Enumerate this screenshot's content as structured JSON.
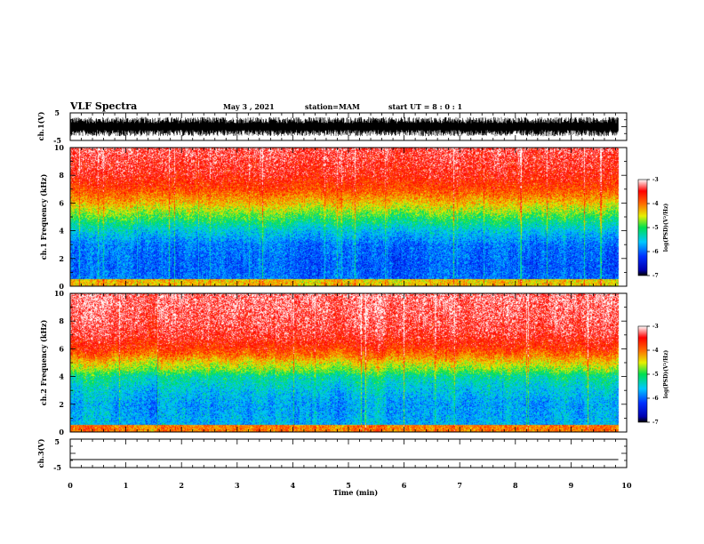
{
  "header": {
    "title": "VLF Spectra",
    "date": "May 3 , 2021",
    "station": "station=MAM",
    "start": "start UT = 8 : 0 : 1"
  },
  "chart_data": [
    {
      "type": "line",
      "name": "ch1-waveform",
      "ylabel": "ch.1(V)",
      "ylim": [
        -5,
        5
      ],
      "yticks": [
        "5",
        "-5"
      ],
      "xlim": [
        0,
        10
      ],
      "trace": "dense noise filling roughly -3.5 to +3.5 V over 0 to 9.85 min"
    },
    {
      "type": "heatmap",
      "name": "ch1-spectrogram",
      "ylabel": "ch.1 Frequency (kHz)",
      "xlim": [
        0,
        10
      ],
      "ylim": [
        0,
        10
      ],
      "xticks": [
        "0",
        "1",
        "2",
        "3",
        "4",
        "5",
        "6",
        "7",
        "8",
        "9",
        "10"
      ],
      "yticks": [
        "0",
        "2",
        "4",
        "6",
        "8",
        "10"
      ],
      "data_end_x": 9.85,
      "colorbar": {
        "label": "log(PSD)(V²/Hz)",
        "range": [
          -7,
          -3
        ],
        "ticks": [
          "-3",
          "-4",
          "-5",
          "-6",
          "-7"
        ]
      },
      "profile": [
        [
          0,
          -5.9
        ],
        [
          1.5,
          -6.0
        ],
        [
          3,
          -5.9
        ],
        [
          4,
          -5.5
        ],
        [
          5,
          -4.9
        ],
        [
          5.5,
          -4.6
        ],
        [
          6,
          -4.3
        ],
        [
          7,
          -3.8
        ],
        [
          8,
          -3.5
        ],
        [
          9,
          -3.4
        ],
        [
          10,
          -3.3
        ]
      ]
    },
    {
      "type": "heatmap",
      "name": "ch2-spectrogram",
      "ylabel": "ch.2 Frequency (kHz)",
      "xlim": [
        0,
        10
      ],
      "ylim": [
        0,
        10
      ],
      "xticks": [
        "0",
        "1",
        "2",
        "3",
        "4",
        "5",
        "6",
        "7",
        "8",
        "9",
        "10"
      ],
      "yticks": [
        "0",
        "2",
        "4",
        "6",
        "8",
        "10"
      ],
      "data_end_x": 9.85,
      "colorbar": {
        "label": "log(PSD)(V²/Hz)",
        "range": [
          -7,
          -3
        ],
        "ticks": [
          "-3",
          "-4",
          "-5",
          "-6",
          "-7"
        ]
      },
      "profile": [
        [
          0,
          -5.6
        ],
        [
          2,
          -5.7
        ],
        [
          3,
          -5.5
        ],
        [
          4,
          -5.2
        ],
        [
          4.5,
          -4.7
        ],
        [
          5,
          -4.4
        ],
        [
          5.5,
          -4.0
        ],
        [
          6,
          -3.7
        ],
        [
          7,
          -3.4
        ],
        [
          8,
          -3.3
        ],
        [
          10,
          -3.2
        ]
      ]
    },
    {
      "type": "line",
      "name": "ch3-waveform",
      "ylabel": "ch.3(V)",
      "ylim": [
        -5,
        5
      ],
      "yticks": [
        "5",
        "-5"
      ],
      "xlim": [
        0,
        10
      ],
      "xlabel": "Time (min)",
      "xticks": [
        "0",
        "1",
        "2",
        "3",
        "4",
        "5",
        "6",
        "7",
        "8",
        "9",
        "10"
      ],
      "trace_value": -2.2,
      "data_end_x": 9.85
    }
  ]
}
